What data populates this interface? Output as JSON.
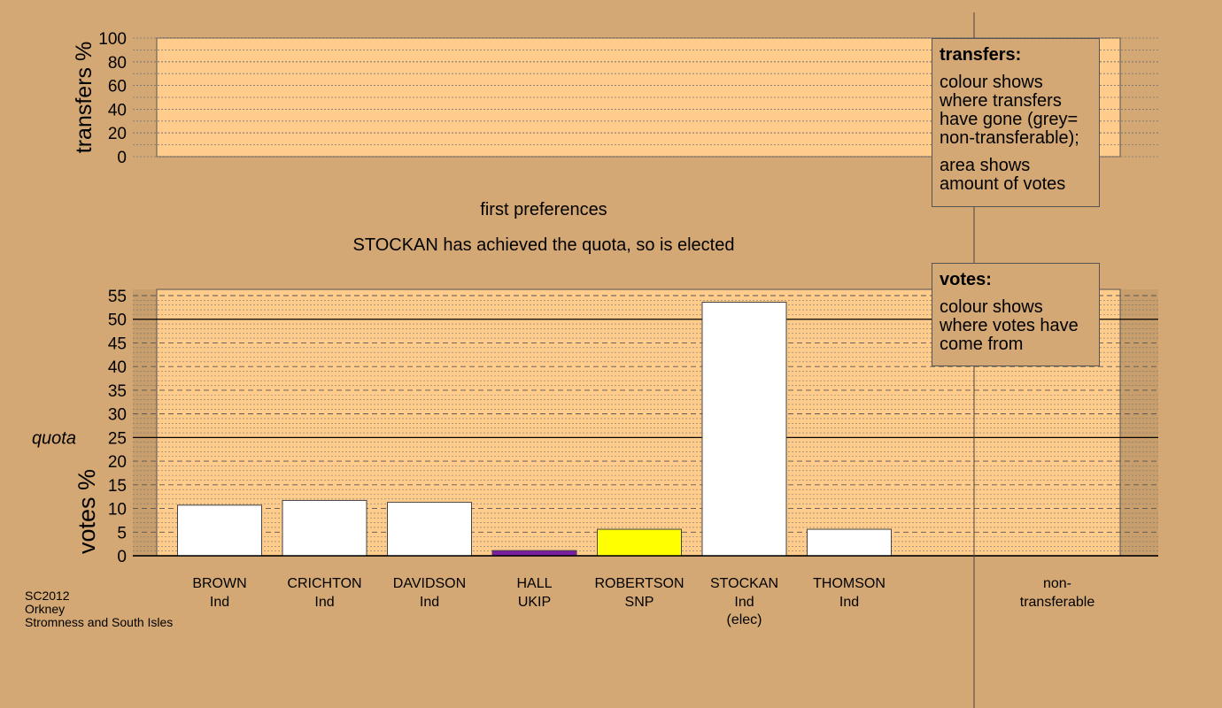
{
  "round_label": "first preferences",
  "status_message": "STOCKAN has achieved the quota, so is elected",
  "colors": {
    "background": "#d4a874",
    "panel": "#ffcc8c",
    "independent": "#ffffff",
    "ukip": "#7a1fa2",
    "snp": "#ffff00"
  },
  "transfers_legend": {
    "title": "transfers:",
    "line1": "colour shows where transfers have gone (grey= non-transferable);",
    "line2": "area shows amount of votes"
  },
  "votes_legend": {
    "title": "votes:",
    "line1": "colour shows where votes have come from"
  },
  "footer": {
    "election": "SC2012",
    "council": "Orkney",
    "ward": "Stromness and South Isles"
  },
  "chart_data": [
    {
      "type": "bar",
      "ylabel": "transfers %",
      "ylim": [
        0,
        100
      ],
      "yticks": [
        0,
        20,
        40,
        60,
        80,
        100
      ],
      "categories": [],
      "values": []
    },
    {
      "type": "bar",
      "ylabel": "votes %",
      "ylim": [
        0,
        55
      ],
      "yticks": [
        0,
        5,
        10,
        15,
        20,
        25,
        30,
        35,
        40,
        45,
        50,
        55
      ],
      "quota_label": "quota",
      "quota": 25,
      "bars": [
        {
          "name": "BROWN",
          "party": "Ind",
          "value": 10.7,
          "color": "#ffffff"
        },
        {
          "name": "CRICHTON",
          "party": "Ind",
          "value": 11.7,
          "color": "#ffffff"
        },
        {
          "name": "DAVIDSON",
          "party": "Ind",
          "value": 11.3,
          "color": "#ffffff"
        },
        {
          "name": "HALL",
          "party": "UKIP",
          "value": 1.1,
          "color": "#7a1fa2"
        },
        {
          "name": "ROBERTSON",
          "party": "SNP",
          "value": 5.6,
          "color": "#ffff00"
        },
        {
          "name": "STOCKAN",
          "party": "Ind",
          "note": "(elec)",
          "value": 53.6,
          "color": "#ffffff"
        },
        {
          "name": "THOMSON",
          "party": "Ind",
          "value": 5.6,
          "color": "#ffffff"
        }
      ],
      "nontransferable_label": [
        "non-",
        "transferable"
      ],
      "nontransferable_value": 0
    }
  ]
}
